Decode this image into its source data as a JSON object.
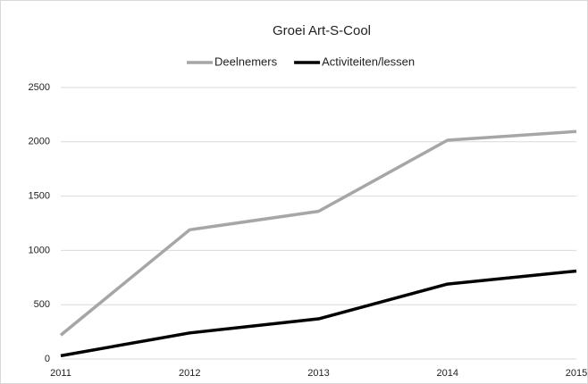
{
  "chart_data": {
    "type": "line",
    "title": "Groei Art-S-Cool",
    "categories": [
      "2011",
      "2012",
      "2013",
      "2014",
      "2015"
    ],
    "series": [
      {
        "name": "Deelnemers",
        "color": "#a6a6a6",
        "values": [
          220,
          1190,
          1360,
          2015,
          2095
        ]
      },
      {
        "name": "Activiteiten/lessen",
        "color": "#000000",
        "values": [
          30,
          240,
          370,
          690,
          810
        ]
      }
    ],
    "ylim": [
      0,
      2500
    ],
    "yticks": [
      0,
      500,
      1000,
      1500,
      2000,
      2500
    ],
    "grid": true,
    "legend": "top"
  }
}
